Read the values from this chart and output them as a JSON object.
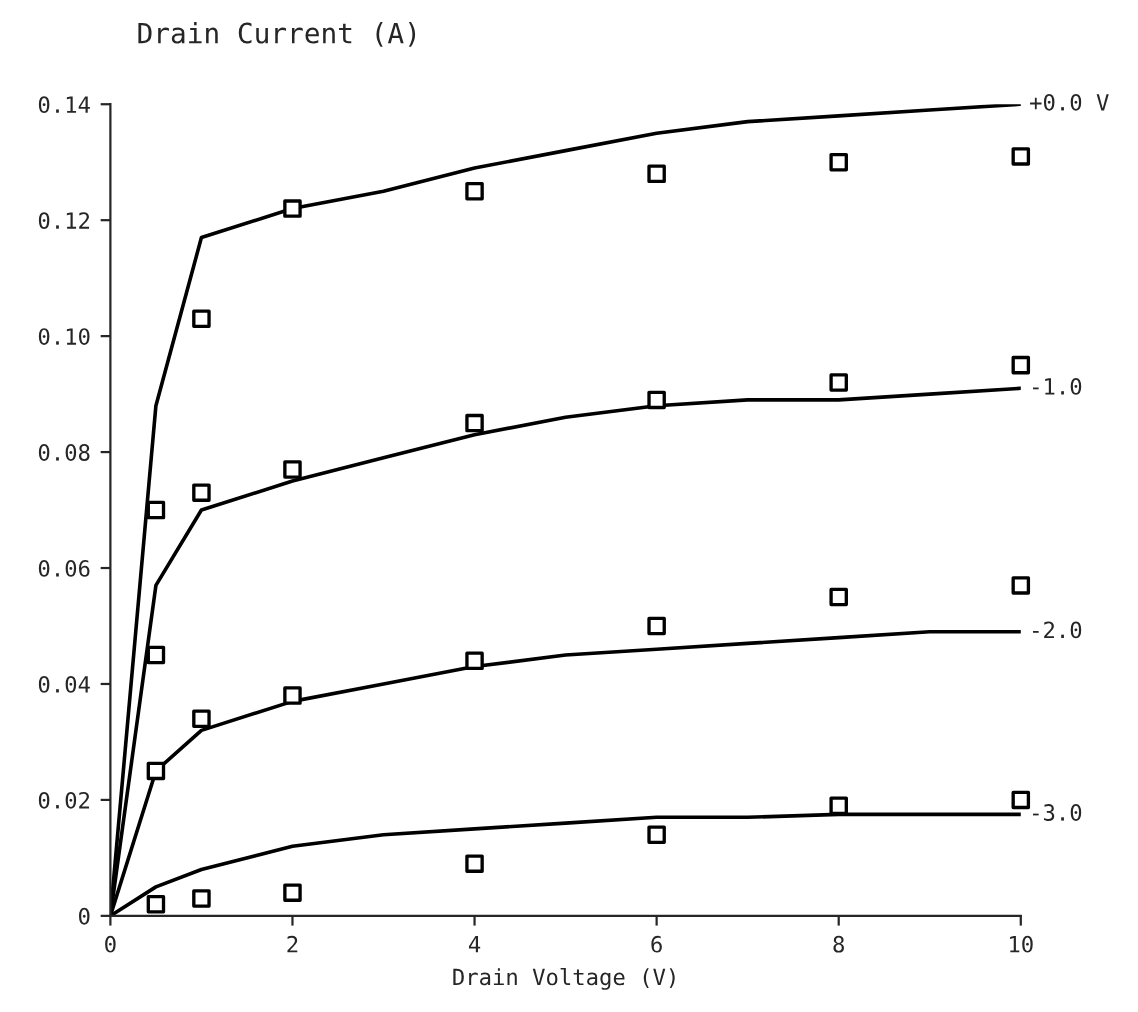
{
  "chart_data": {
    "type": "line",
    "title": "Drain Current (A)",
    "xlabel": "Drain Voltage (V)",
    "xlim": [
      0,
      10
    ],
    "xticks": [
      0,
      2,
      4,
      6,
      8,
      10
    ],
    "ylim": [
      0,
      0.14
    ],
    "yticks": [
      {
        "value": 0,
        "label": "0"
      },
      {
        "value": 0.02,
        "label": "0.02"
      },
      {
        "value": 0.04,
        "label": "0.04"
      },
      {
        "value": 0.06,
        "label": "0.06"
      },
      {
        "value": 0.08,
        "label": "0.08"
      },
      {
        "value": 0.1,
        "label": "0.10"
      },
      {
        "value": 0.12,
        "label": "0.12"
      },
      {
        "value": 0.14,
        "label": "0.14"
      }
    ],
    "grid": false,
    "legend": false,
    "series": [
      {
        "name": "+0.0 V",
        "color": "#000000",
        "marker": "none",
        "line_style": "solid",
        "x": [
          0,
          0.5,
          1,
          2,
          3,
          4,
          5,
          6,
          7,
          8,
          9,
          10
        ],
        "values": [
          0,
          0.088,
          0.117,
          0.122,
          0.125,
          0.129,
          0.132,
          0.135,
          0.137,
          0.138,
          0.139,
          0.14
        ]
      },
      {
        "name": "-1.0",
        "color": "#000000",
        "marker": "none",
        "line_style": "solid",
        "x": [
          0,
          0.5,
          1,
          2,
          3,
          4,
          5,
          6,
          7,
          8,
          9,
          10
        ],
        "values": [
          0,
          0.057,
          0.07,
          0.075,
          0.079,
          0.083,
          0.086,
          0.088,
          0.089,
          0.089,
          0.09,
          0.091
        ]
      },
      {
        "name": "-2.0",
        "color": "#000000",
        "marker": "none",
        "line_style": "solid",
        "x": [
          0,
          0.5,
          1,
          2,
          3,
          4,
          5,
          6,
          7,
          8,
          9,
          10
        ],
        "values": [
          0,
          0.025,
          0.032,
          0.037,
          0.04,
          0.043,
          0.045,
          0.046,
          0.047,
          0.048,
          0.049,
          0.049
        ]
      },
      {
        "name": "-3.0",
        "color": "#000000",
        "marker": "none",
        "line_style": "solid",
        "x": [
          0,
          0.5,
          1,
          2,
          3,
          4,
          5,
          6,
          7,
          8,
          9,
          10
        ],
        "values": [
          0,
          0.005,
          0.008,
          0.012,
          0.014,
          0.015,
          0.016,
          0.017,
          0.017,
          0.0175,
          0.0175,
          0.0175
        ]
      },
      {
        "type": "scatter",
        "color": "#000000",
        "marker": "square",
        "x": [
          0.5,
          1,
          2,
          4,
          6,
          8,
          10
        ],
        "values": [
          0.07,
          0.103,
          0.122,
          0.125,
          0.128,
          0.13,
          0.131
        ]
      },
      {
        "type": "scatter",
        "color": "#000000",
        "marker": "square",
        "x": [
          0.5,
          1,
          2,
          4,
          6,
          8,
          10
        ],
        "values": [
          0.045,
          0.073,
          0.077,
          0.085,
          0.089,
          0.092,
          0.095
        ]
      },
      {
        "type": "scatter",
        "color": "#000000",
        "marker": "square",
        "x": [
          0.5,
          1,
          2,
          4,
          6,
          8,
          10
        ],
        "values": [
          0.025,
          0.034,
          0.038,
          0.044,
          0.05,
          0.055,
          0.057
        ]
      },
      {
        "type": "scatter",
        "color": "#000000",
        "marker": "square",
        "x": [
          0.5,
          1,
          2,
          4,
          6,
          8,
          10
        ],
        "values": [
          0.002,
          0.003,
          0.004,
          0.009,
          0.014,
          0.019,
          0.02
        ]
      }
    ]
  }
}
